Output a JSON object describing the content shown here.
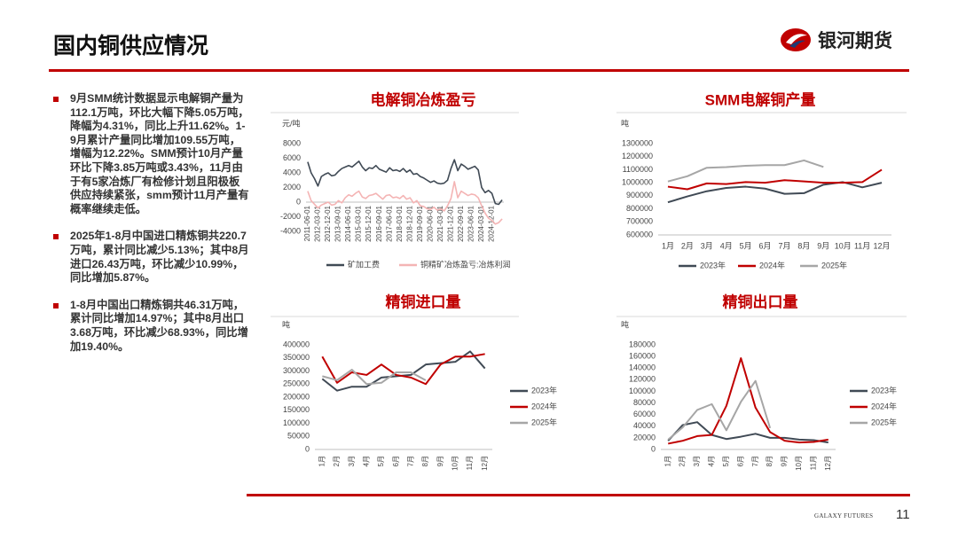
{
  "header": {
    "title": "国内铜供应情况",
    "logo": "银河期货"
  },
  "bullets": [
    "9月SMM统计数据显示电解铜产量为112.1万吨，环比大幅下降5.05万吨，降幅为4.31%，同比上升11.62%。1-9月累计产量同比增加109.55万吨，增幅为12.22%。SMM预计10月产量环比下降3.85万吨或3.43%，11月由于有5家冶炼厂有检修计划且阳极板供应持续紧张，smm预计11月产量有概率继续走低。",
    "2025年1-8月中国进口精炼铜共220.7万吨，累计同比减少5.13%；其中8月进口26.43万吨，环比减少10.99%，同比增加5.87%。",
    "1-8月中国出口精炼铜共46.31万吨，累计同比增加14.97%；其中8月出口3.68万吨，环比减少68.93%，同比增加19.40%。"
  ],
  "footer": {
    "brand": "GALAXY FUTURES",
    "page": "11"
  },
  "chart_data": [
    {
      "type": "line",
      "title": "电解铜冶炼盈亏",
      "ylabel": "元/吨",
      "legend": "bottom",
      "categories": [
        "2011-06-01",
        null,
        null,
        "2012-03-01",
        null,
        null,
        "2012-12-01",
        null,
        null,
        "2013-09-01",
        null,
        null,
        "2014-06-01",
        null,
        null,
        "2015-03-01",
        null,
        null,
        "2015-12-01",
        null,
        null,
        "2016-09-01",
        null,
        null,
        "2017-06-01",
        null,
        null,
        "2018-03-01",
        null,
        null,
        "2018-12-01",
        null,
        null,
        "2019-09-01",
        null,
        null,
        "2020-06-01",
        null,
        null,
        "2021-03-01",
        null,
        null,
        "2021-12-01",
        null,
        null,
        "2022-09-01",
        null,
        null,
        "2023-06-01",
        null,
        null,
        "2024-03-01",
        null,
        null,
        "2024-12-01",
        null,
        null,
        null
      ],
      "ylim": [
        -4000,
        8000
      ],
      "yticks": [
        -4000,
        -2000,
        0,
        2000,
        4000,
        6000,
        8000
      ],
      "series": [
        {
          "name": "矿加工费",
          "color": "#404a55",
          "values": [
            5500,
            4000,
            3200,
            2200,
            3500,
            3800,
            4000,
            3600,
            3700,
            4200,
            4600,
            4800,
            5000,
            4800,
            5200,
            5600,
            4800,
            4300,
            4700,
            4600,
            5000,
            4500,
            4300,
            4100,
            4700,
            4300,
            4400,
            4200,
            4600,
            4100,
            4400,
            3800,
            3900,
            3500,
            3300,
            3000,
            2700,
            2900,
            2600,
            2500,
            2600,
            3000,
            4600,
            5800,
            4300,
            5200,
            4900,
            4500,
            4700,
            4900,
            4400,
            2000,
            1300,
            1600,
            1200,
            -200,
            -300,
            300
          ]
        },
        {
          "name": "铜精矿冶炼盈亏:冶炼利润",
          "color": "#f4b4b4",
          "values": [
            1500,
            200,
            -300,
            -800,
            -400,
            -200,
            0,
            -400,
            -300,
            200,
            -100,
            600,
            1000,
            800,
            1200,
            1500,
            700,
            500,
            900,
            1000,
            1200,
            800,
            400,
            900,
            1000,
            600,
            700,
            500,
            900,
            400,
            600,
            -100,
            200,
            -500,
            -600,
            -900,
            -1000,
            -700,
            -1100,
            -900,
            -1200,
            -500,
            500,
            2800,
            600,
            1500,
            1200,
            900,
            1100,
            1000,
            600,
            -500,
            -1500,
            -2200,
            -2500,
            -3000,
            -2800,
            -2300
          ]
        }
      ]
    },
    {
      "type": "line",
      "title": "SMM电解铜产量",
      "ylabel": "吨",
      "legend": "bottom",
      "categories": [
        "1月",
        "2月",
        "3月",
        "4月",
        "5月",
        "6月",
        "7月",
        "8月",
        "9月",
        "10月",
        "11月",
        "12月"
      ],
      "ylim": [
        600000,
        1300000
      ],
      "yticks": [
        600000,
        700000,
        800000,
        900000,
        1000000,
        1100000,
        1200000,
        1300000
      ],
      "series": [
        {
          "name": "2023年",
          "color": "#404a55",
          "values": [
            850000,
            895000,
            935000,
            960000,
            970000,
            955000,
            915000,
            920000,
            985000,
            1005000,
            965000,
            1000000
          ]
        },
        {
          "name": "2024年",
          "color": "#c00000",
          "values": [
            970000,
            950000,
            995000,
            990000,
            1005000,
            1000000,
            1020000,
            1010000,
            1000000,
            1000000,
            1005000,
            1100000
          ]
        },
        {
          "name": "2025年",
          "color": "#a6a6a6",
          "values": [
            1010000,
            1050000,
            1115000,
            1120000,
            1130000,
            1135000,
            1135000,
            1171500,
            1121000,
            null,
            null,
            null
          ]
        }
      ]
    },
    {
      "type": "line",
      "title": "精铜进口量",
      "ylabel": "吨",
      "legend": "right",
      "categories": [
        "1月",
        "2月",
        "3月",
        "4月",
        "5月",
        "6月",
        "7月",
        "8月",
        "9月",
        "10月",
        "11月",
        "12月"
      ],
      "ylim": [
        0,
        400000
      ],
      "yticks": [
        0,
        50000,
        100000,
        150000,
        200000,
        250000,
        300000,
        350000,
        400000
      ],
      "series": [
        {
          "name": "2023年",
          "color": "#404a55",
          "values": [
            270000,
            225000,
            240000,
            240000,
            275000,
            280000,
            285000,
            325000,
            330000,
            335000,
            375000,
            310000
          ]
        },
        {
          "name": "2024年",
          "color": "#c00000",
          "values": [
            355000,
            255000,
            295000,
            285000,
            325000,
            285000,
            275000,
            250000,
            325000,
            355000,
            355000,
            365000
          ]
        },
        {
          "name": "2025年",
          "color": "#a6a6a6",
          "values": [
            280000,
            265000,
            305000,
            250000,
            255000,
            295000,
            295000,
            264300,
            null,
            null,
            null,
            null
          ]
        }
      ]
    },
    {
      "type": "line",
      "title": "精铜出口量",
      "ylabel": "吨",
      "legend": "right",
      "categories": [
        "1月",
        "2月",
        "3月",
        "4月",
        "5月",
        "6月",
        "7月",
        "8月",
        "9月",
        "10月",
        "11月",
        "12月"
      ],
      "ylim": [
        0,
        180000
      ],
      "yticks": [
        0,
        20000,
        40000,
        60000,
        80000,
        100000,
        120000,
        140000,
        160000,
        180000
      ],
      "series": [
        {
          "name": "2023年",
          "color": "#404a55",
          "values": [
            15000,
            42000,
            47000,
            25000,
            18000,
            22000,
            27000,
            20000,
            20000,
            17000,
            16000,
            12000
          ]
        },
        {
          "name": "2024年",
          "color": "#c00000",
          "values": [
            10000,
            15000,
            23000,
            25000,
            75000,
            157000,
            72000,
            30000,
            15000,
            12000,
            13000,
            17000
          ]
        },
        {
          "name": "2025年",
          "color": "#a6a6a6",
          "values": [
            17000,
            38000,
            68000,
            78000,
            33000,
            82000,
            118000,
            36800,
            null,
            null,
            null,
            null
          ]
        }
      ]
    }
  ]
}
